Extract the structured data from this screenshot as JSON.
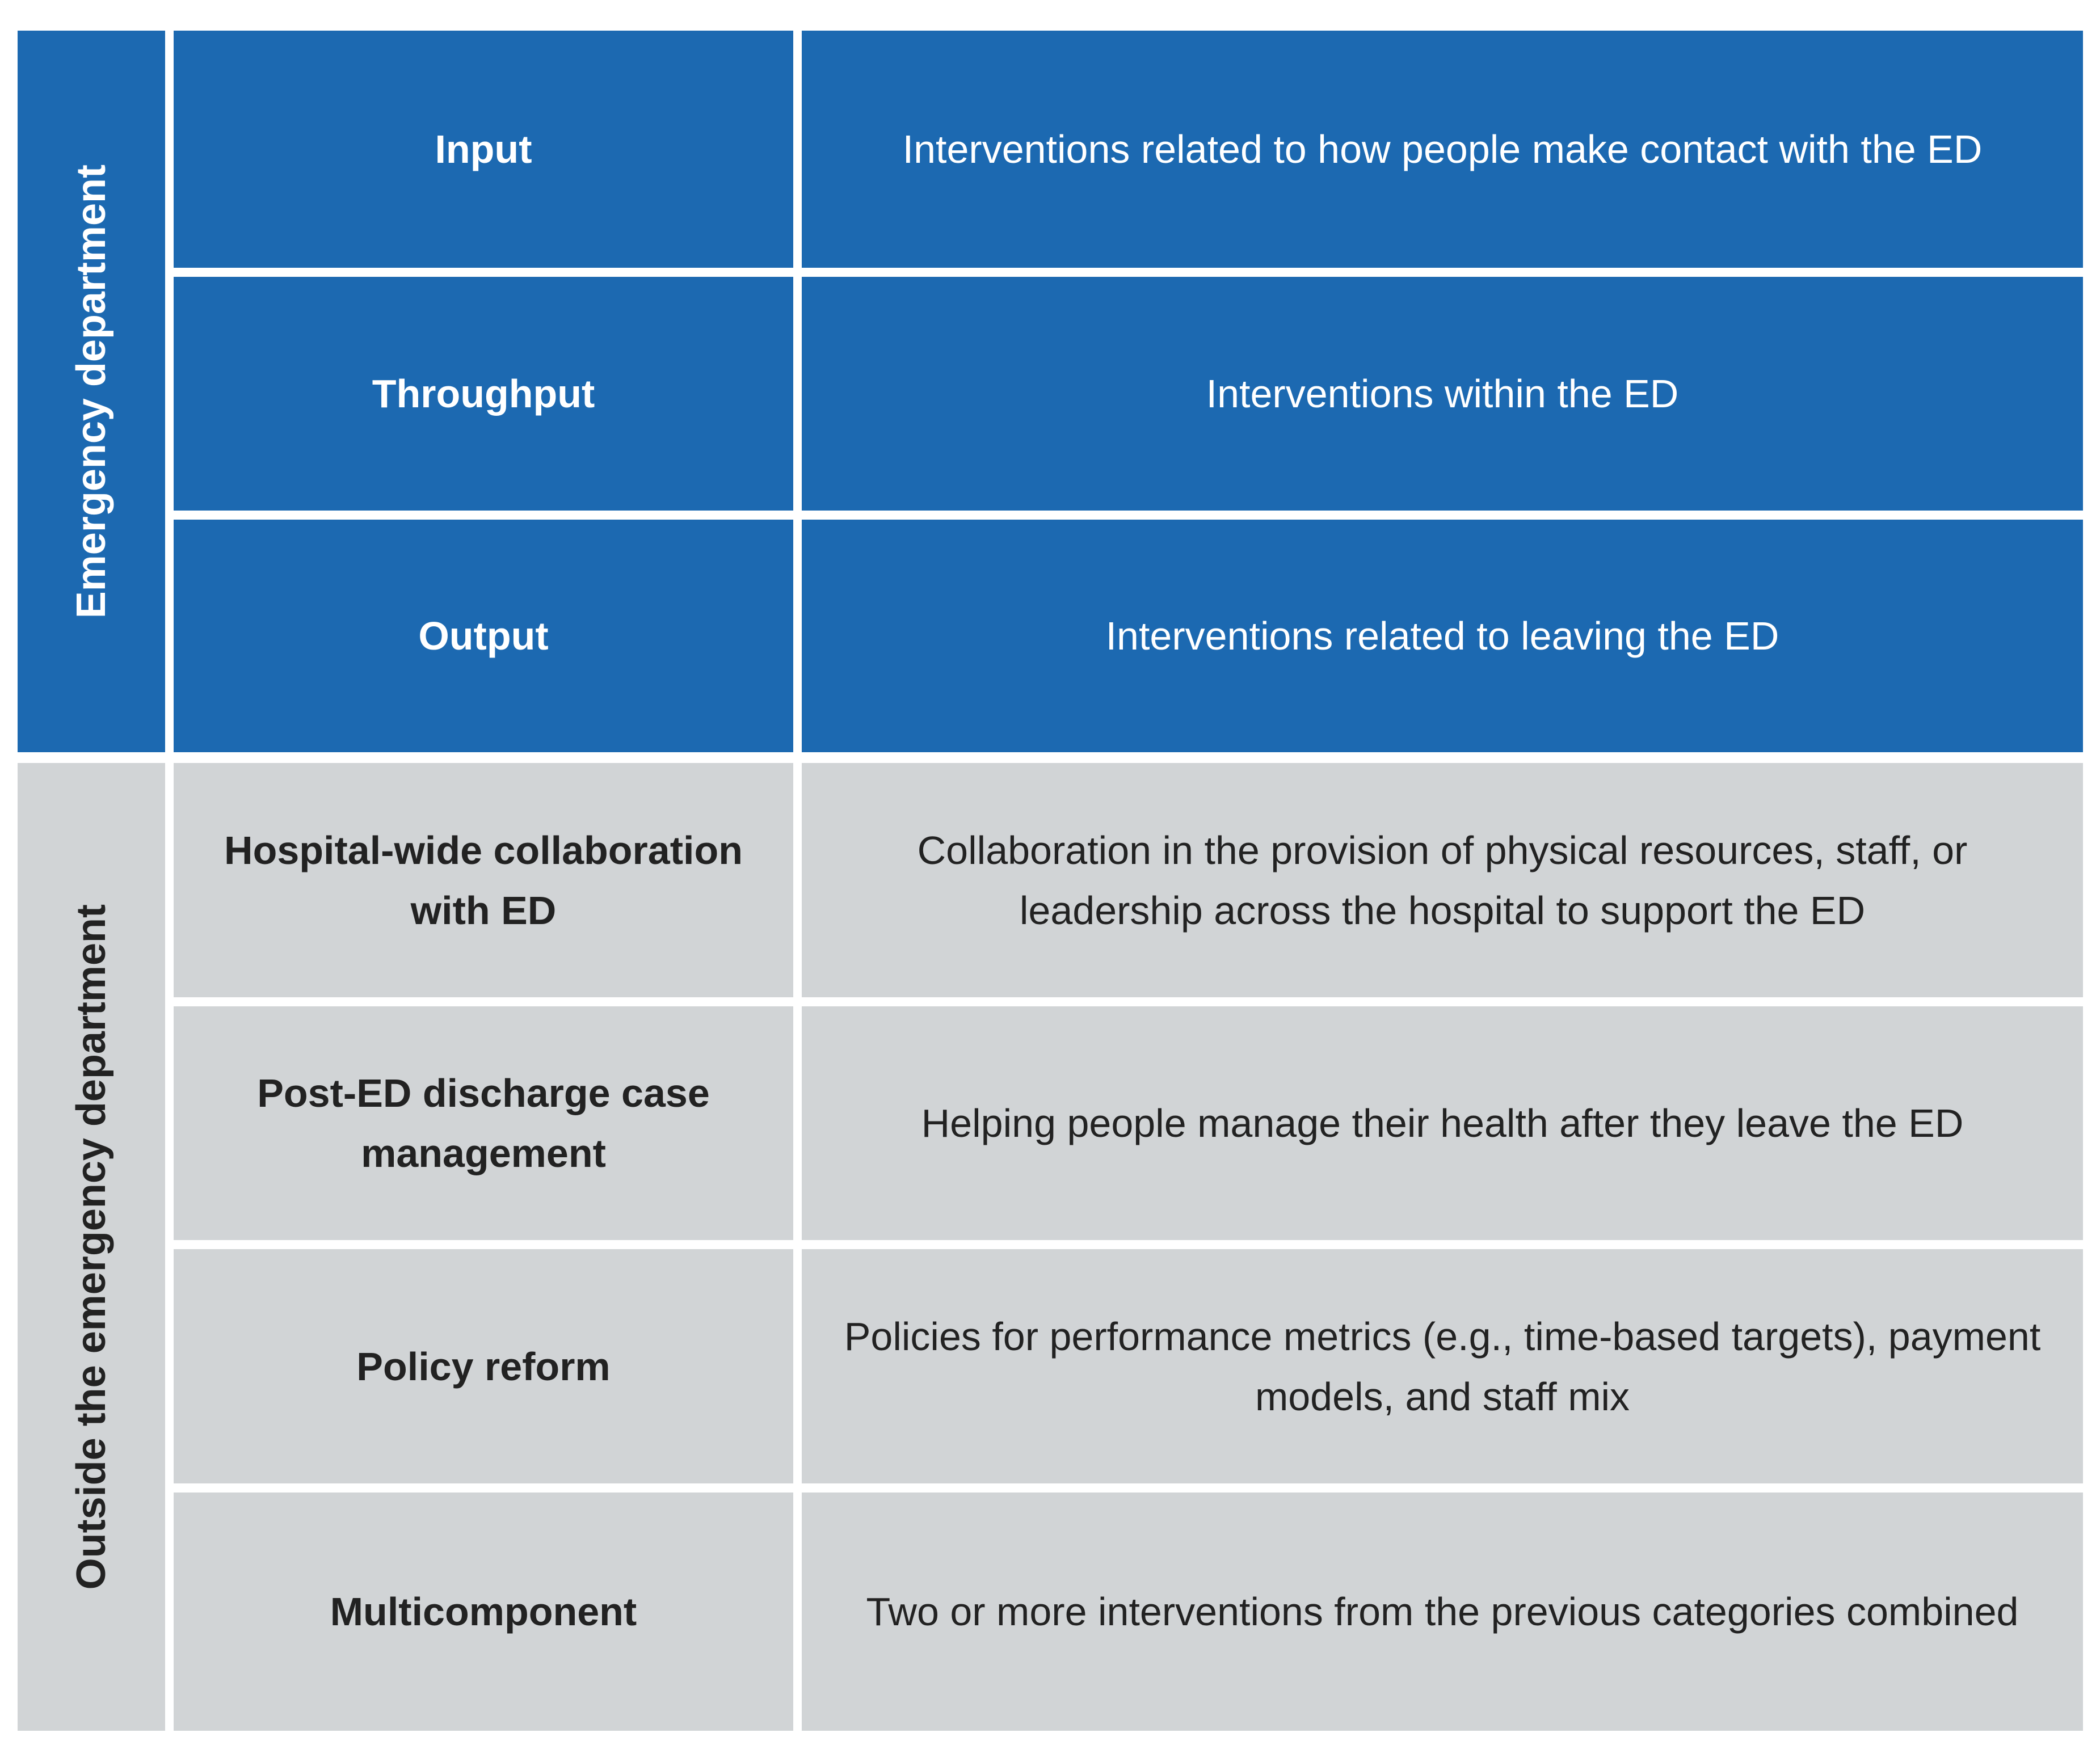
{
  "colors": {
    "ed": "#1c69b1",
    "outside": "#d1d4d6"
  },
  "groups": [
    {
      "label": "Emergency department",
      "rows": [
        {
          "category": "Input",
          "description": "Interventions related to how people make contact with the ED"
        },
        {
          "category": "Throughput",
          "description": "Interventions within the ED"
        },
        {
          "category": "Output",
          "description": "Interventions related to leaving the ED"
        }
      ]
    },
    {
      "label": "Outside the emergency department",
      "rows": [
        {
          "category": "Hospital-wide collaboration with ED",
          "description": "Collaboration in the provision of physical resources, staff, or leadership across the hospital to support the ED"
        },
        {
          "category": "Post-ED discharge case management",
          "description": "Helping people manage their health after they leave the ED"
        },
        {
          "category": "Policy reform",
          "description": "Policies for performance metrics (e.g., time-based targets), payment models, and staff mix"
        },
        {
          "category": "Multicomponent",
          "description": "Two or more interventions from the previous categories combined"
        }
      ]
    }
  ]
}
